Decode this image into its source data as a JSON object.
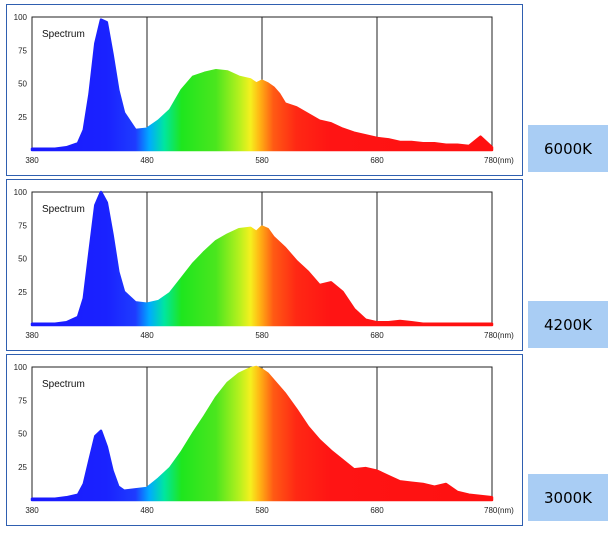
{
  "chart_data": [
    {
      "type": "area",
      "title": "Spectrum",
      "badge": "6000K",
      "x_ticks": [
        380,
        480,
        580,
        680,
        780
      ],
      "x_unit": "(nm)",
      "y_ticks": [
        25,
        50,
        75,
        100
      ],
      "xlim": [
        380,
        780
      ],
      "ylim": [
        0,
        100
      ],
      "grid": true,
      "x": [
        380,
        400,
        410,
        420,
        425,
        430,
        435,
        440,
        445,
        450,
        455,
        460,
        470,
        480,
        490,
        500,
        510,
        520,
        530,
        540,
        550,
        560,
        570,
        575,
        580,
        585,
        590,
        595,
        600,
        610,
        620,
        630,
        640,
        650,
        660,
        670,
        680,
        690,
        700,
        710,
        720,
        730,
        740,
        750,
        760,
        770,
        780
      ],
      "y": [
        1,
        1,
        2,
        5,
        15,
        42,
        80,
        98,
        96,
        72,
        45,
        28,
        15,
        16,
        22,
        30,
        45,
        55,
        58,
        60,
        59,
        55,
        53,
        50,
        52,
        50,
        47,
        42,
        35,
        32,
        27,
        22,
        20,
        16,
        13,
        11,
        9,
        8,
        6,
        6,
        5,
        5,
        4,
        4,
        3,
        10,
        2
      ]
    },
    {
      "type": "area",
      "title": "Spectrum",
      "badge": "4200K",
      "x_ticks": [
        380,
        480,
        580,
        680,
        780
      ],
      "x_unit": "(nm)",
      "y_ticks": [
        25,
        50,
        75,
        100
      ],
      "xlim": [
        380,
        780
      ],
      "ylim": [
        0,
        100
      ],
      "grid": true,
      "x": [
        380,
        400,
        410,
        420,
        425,
        430,
        435,
        440,
        445,
        450,
        455,
        460,
        470,
        480,
        490,
        500,
        510,
        520,
        530,
        540,
        550,
        560,
        570,
        575,
        580,
        585,
        590,
        600,
        610,
        620,
        630,
        640,
        650,
        660,
        670,
        680,
        690,
        700,
        710,
        720,
        730,
        740,
        750,
        760,
        770,
        780
      ],
      "y": [
        1,
        1,
        2,
        6,
        20,
        55,
        90,
        100,
        92,
        68,
        40,
        25,
        17,
        16,
        18,
        24,
        35,
        46,
        55,
        63,
        68,
        72,
        73,
        70,
        74,
        72,
        66,
        58,
        48,
        40,
        30,
        32,
        25,
        12,
        4,
        2,
        2,
        3,
        2,
        1,
        1,
        1,
        1,
        1,
        1,
        1
      ]
    },
    {
      "type": "area",
      "title": "Spectrum",
      "badge": "3000K",
      "x_ticks": [
        380,
        480,
        580,
        680,
        780
      ],
      "x_unit": "(nm)",
      "y_ticks": [
        25,
        50,
        75,
        100
      ],
      "xlim": [
        380,
        780
      ],
      "ylim": [
        0,
        100
      ],
      "grid": true,
      "x": [
        380,
        400,
        410,
        420,
        425,
        430,
        435,
        440,
        445,
        450,
        455,
        460,
        470,
        480,
        490,
        500,
        510,
        520,
        530,
        540,
        550,
        560,
        570,
        575,
        580,
        585,
        590,
        600,
        610,
        620,
        630,
        640,
        650,
        660,
        670,
        680,
        690,
        700,
        710,
        720,
        730,
        740,
        750,
        760,
        770,
        780
      ],
      "y": [
        1,
        1,
        2,
        4,
        12,
        30,
        48,
        52,
        40,
        22,
        10,
        7,
        8,
        9,
        16,
        24,
        36,
        50,
        63,
        77,
        88,
        95,
        99,
        100,
        98,
        95,
        90,
        80,
        68,
        55,
        45,
        37,
        30,
        23,
        24,
        22,
        18,
        14,
        13,
        12,
        10,
        12,
        6,
        4,
        3,
        2
      ]
    }
  ]
}
